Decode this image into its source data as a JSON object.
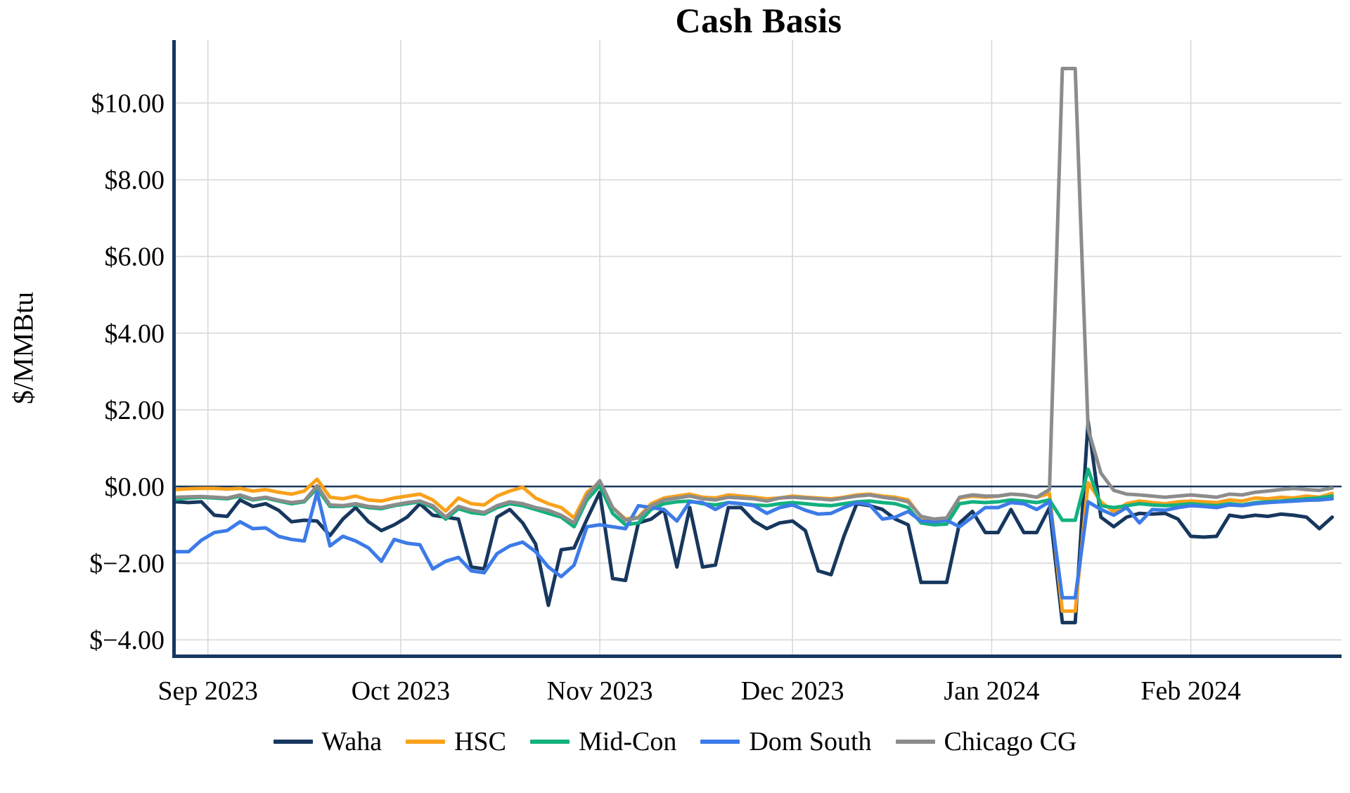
{
  "chart_data": {
    "type": "line",
    "title": "Cash Basis",
    "ylabel": "$/MMBtu",
    "grid": true,
    "legend_position": "bottom",
    "axis_color": "#17375E",
    "zero_line_color": "#17375E",
    "grid_color": "#D9D9D9",
    "x_start_date": "2023-08-27",
    "x_unit": "days since 2023-08-27, sampled every 2 days",
    "ylim": [
      -4.6,
      11.6
    ],
    "y_ticks": [
      {
        "value": 10,
        "label": "$10.00"
      },
      {
        "value": 8,
        "label": "$8.00"
      },
      {
        "value": 6,
        "label": "$6.00"
      },
      {
        "value": 4,
        "label": "$4.00"
      },
      {
        "value": 2,
        "label": "$2.00"
      },
      {
        "value": 0,
        "label": "$0.00"
      },
      {
        "value": -2,
        "label": "$−2.00"
      },
      {
        "value": -4,
        "label": "$−4.00"
      }
    ],
    "x_ticks": [
      {
        "day": 5,
        "label": "Sep 2023"
      },
      {
        "day": 35,
        "label": "Oct 2023"
      },
      {
        "day": 66,
        "label": "Nov 2023"
      },
      {
        "day": 96,
        "label": "Dec 2023"
      },
      {
        "day": 127,
        "label": "Jan 2024"
      },
      {
        "day": 158,
        "label": "Feb 2024"
      }
    ],
    "zero_line_value": 0,
    "x_days": [
      0,
      2,
      4,
      6,
      8,
      10,
      12,
      14,
      16,
      18,
      20,
      22,
      24,
      26,
      28,
      30,
      32,
      34,
      36,
      38,
      40,
      42,
      44,
      46,
      48,
      50,
      52,
      54,
      56,
      58,
      60,
      62,
      64,
      66,
      68,
      70,
      72,
      74,
      76,
      78,
      80,
      82,
      84,
      86,
      88,
      90,
      92,
      94,
      96,
      98,
      100,
      102,
      104,
      106,
      108,
      110,
      112,
      114,
      116,
      118,
      120,
      122,
      124,
      126,
      128,
      130,
      132,
      134,
      136,
      138,
      140,
      142,
      144,
      146,
      148,
      150,
      152,
      154,
      156,
      158,
      160,
      162,
      164,
      166,
      168,
      170,
      172,
      174,
      176,
      178,
      180
    ],
    "series": [
      {
        "name": "Waha",
        "color": "#17375E",
        "values": [
          -0.4,
          -0.42,
          -0.4,
          -0.75,
          -0.78,
          -0.35,
          -0.52,
          -0.45,
          -0.62,
          -0.92,
          -0.88,
          -0.9,
          -1.28,
          -0.85,
          -0.55,
          -0.92,
          -1.15,
          -1.0,
          -0.8,
          -0.45,
          -0.75,
          -0.8,
          -0.85,
          -2.1,
          -2.15,
          -0.8,
          -0.6,
          -0.95,
          -1.5,
          -3.1,
          -1.65,
          -1.6,
          -0.85,
          -0.15,
          -2.4,
          -2.45,
          -0.95,
          -0.85,
          -0.6,
          -2.1,
          -0.55,
          -2.1,
          -2.05,
          -0.55,
          -0.55,
          -0.9,
          -1.1,
          -0.95,
          -0.9,
          -1.15,
          -2.2,
          -2.3,
          -1.3,
          -0.45,
          -0.5,
          -0.6,
          -0.85,
          -1.0,
          -2.5,
          -2.5,
          -2.5,
          -0.95,
          -0.65,
          -1.2,
          -1.2,
          -0.6,
          -1.2,
          -1.2,
          -0.55,
          -3.55,
          -3.55,
          1.7,
          -0.8,
          -1.05,
          -0.8,
          -0.7,
          -0.72,
          -0.7,
          -0.85,
          -1.3,
          -1.32,
          -1.3,
          -0.75,
          -0.8,
          -0.75,
          -0.78,
          -0.72,
          -0.75,
          -0.8,
          -1.1,
          -0.8
        ]
      },
      {
        "name": "HSC",
        "color": "#F9A11B",
        "values": [
          -0.08,
          -0.06,
          -0.05,
          -0.05,
          -0.07,
          -0.05,
          -0.12,
          -0.08,
          -0.15,
          -0.2,
          -0.12,
          0.19,
          -0.28,
          -0.32,
          -0.25,
          -0.35,
          -0.38,
          -0.3,
          -0.25,
          -0.2,
          -0.35,
          -0.64,
          -0.3,
          -0.45,
          -0.48,
          -0.25,
          -0.12,
          -0.02,
          -0.3,
          -0.45,
          -0.55,
          -0.82,
          -0.15,
          0.1,
          -0.55,
          -0.85,
          -0.8,
          -0.45,
          -0.3,
          -0.25,
          -0.2,
          -0.28,
          -0.3,
          -0.22,
          -0.25,
          -0.28,
          -0.32,
          -0.3,
          -0.25,
          -0.28,
          -0.3,
          -0.32,
          -0.28,
          -0.22,
          -0.2,
          -0.25,
          -0.28,
          -0.35,
          -0.8,
          -0.9,
          -0.85,
          -0.3,
          -0.25,
          -0.28,
          -0.25,
          -0.2,
          -0.22,
          -0.28,
          -0.18,
          -3.25,
          -3.25,
          0.1,
          -0.4,
          -0.66,
          -0.45,
          -0.38,
          -0.42,
          -0.45,
          -0.4,
          -0.38,
          -0.4,
          -0.42,
          -0.35,
          -0.38,
          -0.3,
          -0.32,
          -0.28,
          -0.3,
          -0.25,
          -0.28,
          -0.18
        ]
      },
      {
        "name": "Mid-Con",
        "color": "#12B17E",
        "values": [
          -0.33,
          -0.3,
          -0.28,
          -0.3,
          -0.32,
          -0.25,
          -0.35,
          -0.3,
          -0.38,
          -0.45,
          -0.4,
          -0.05,
          -0.52,
          -0.52,
          -0.48,
          -0.55,
          -0.58,
          -0.5,
          -0.45,
          -0.4,
          -0.55,
          -0.85,
          -0.58,
          -0.68,
          -0.72,
          -0.55,
          -0.45,
          -0.5,
          -0.6,
          -0.7,
          -0.8,
          -1.05,
          -0.35,
          0.02,
          -0.7,
          -1.0,
          -0.95,
          -0.6,
          -0.45,
          -0.4,
          -0.38,
          -0.45,
          -0.48,
          -0.42,
          -0.45,
          -0.48,
          -0.5,
          -0.45,
          -0.42,
          -0.45,
          -0.48,
          -0.5,
          -0.45,
          -0.4,
          -0.38,
          -0.42,
          -0.45,
          -0.55,
          -0.95,
          -1.0,
          -0.98,
          -0.45,
          -0.4,
          -0.42,
          -0.4,
          -0.35,
          -0.38,
          -0.42,
          -0.35,
          -0.88,
          -0.88,
          0.45,
          -0.5,
          -0.55,
          -0.5,
          -0.45,
          -0.48,
          -0.5,
          -0.48,
          -0.45,
          -0.48,
          -0.5,
          -0.45,
          -0.48,
          -0.42,
          -0.4,
          -0.38,
          -0.35,
          -0.32,
          -0.3,
          -0.25
        ]
      },
      {
        "name": "Dom South",
        "color": "#3C7BE8",
        "values": [
          -1.7,
          -1.7,
          -1.4,
          -1.2,
          -1.15,
          -0.92,
          -1.1,
          -1.08,
          -1.3,
          -1.38,
          -1.42,
          -0.15,
          -1.55,
          -1.3,
          -1.42,
          -1.6,
          -1.95,
          -1.38,
          -1.48,
          -1.52,
          -2.15,
          -1.95,
          -1.85,
          -2.2,
          -2.25,
          -1.75,
          -1.55,
          -1.45,
          -1.7,
          -2.1,
          -2.35,
          -2.05,
          -1.05,
          -1.0,
          -1.05,
          -1.1,
          -0.5,
          -0.55,
          -0.6,
          -0.9,
          -0.4,
          -0.42,
          -0.6,
          -0.42,
          -0.45,
          -0.5,
          -0.7,
          -0.55,
          -0.48,
          -0.62,
          -0.72,
          -0.7,
          -0.55,
          -0.42,
          -0.48,
          -0.85,
          -0.8,
          -0.65,
          -0.9,
          -0.92,
          -0.88,
          -1.05,
          -0.8,
          -0.55,
          -0.55,
          -0.42,
          -0.45,
          -0.6,
          -0.4,
          -2.9,
          -2.9,
          -0.4,
          -0.6,
          -0.75,
          -0.55,
          -0.95,
          -0.6,
          -0.62,
          -0.55,
          -0.5,
          -0.52,
          -0.55,
          -0.48,
          -0.5,
          -0.45,
          -0.42,
          -0.4,
          -0.38,
          -0.36,
          -0.35,
          -0.32
        ]
      },
      {
        "name": "Chicago CG",
        "color": "#8C8C8C",
        "values": [
          -0.28,
          -0.27,
          -0.26,
          -0.28,
          -0.3,
          -0.22,
          -0.33,
          -0.28,
          -0.36,
          -0.42,
          -0.38,
          0.02,
          -0.48,
          -0.5,
          -0.45,
          -0.52,
          -0.55,
          -0.48,
          -0.42,
          -0.38,
          -0.5,
          -0.8,
          -0.52,
          -0.62,
          -0.68,
          -0.5,
          -0.4,
          -0.45,
          -0.55,
          -0.62,
          -0.75,
          -0.95,
          -0.25,
          0.15,
          -0.55,
          -0.88,
          -0.82,
          -0.5,
          -0.35,
          -0.3,
          -0.25,
          -0.32,
          -0.35,
          -0.28,
          -0.3,
          -0.32,
          -0.38,
          -0.3,
          -0.28,
          -0.3,
          -0.32,
          -0.35,
          -0.3,
          -0.25,
          -0.22,
          -0.28,
          -0.32,
          -0.4,
          -0.78,
          -0.85,
          -0.82,
          -0.28,
          -0.22,
          -0.25,
          -0.25,
          -0.2,
          -0.22,
          -0.28,
          -0.08,
          10.9,
          10.9,
          1.5,
          0.35,
          -0.1,
          -0.2,
          -0.22,
          -0.25,
          -0.28,
          -0.25,
          -0.22,
          -0.25,
          -0.28,
          -0.2,
          -0.22,
          -0.15,
          -0.12,
          -0.08,
          -0.05,
          -0.08,
          -0.1,
          -0.04
        ]
      }
    ]
  }
}
